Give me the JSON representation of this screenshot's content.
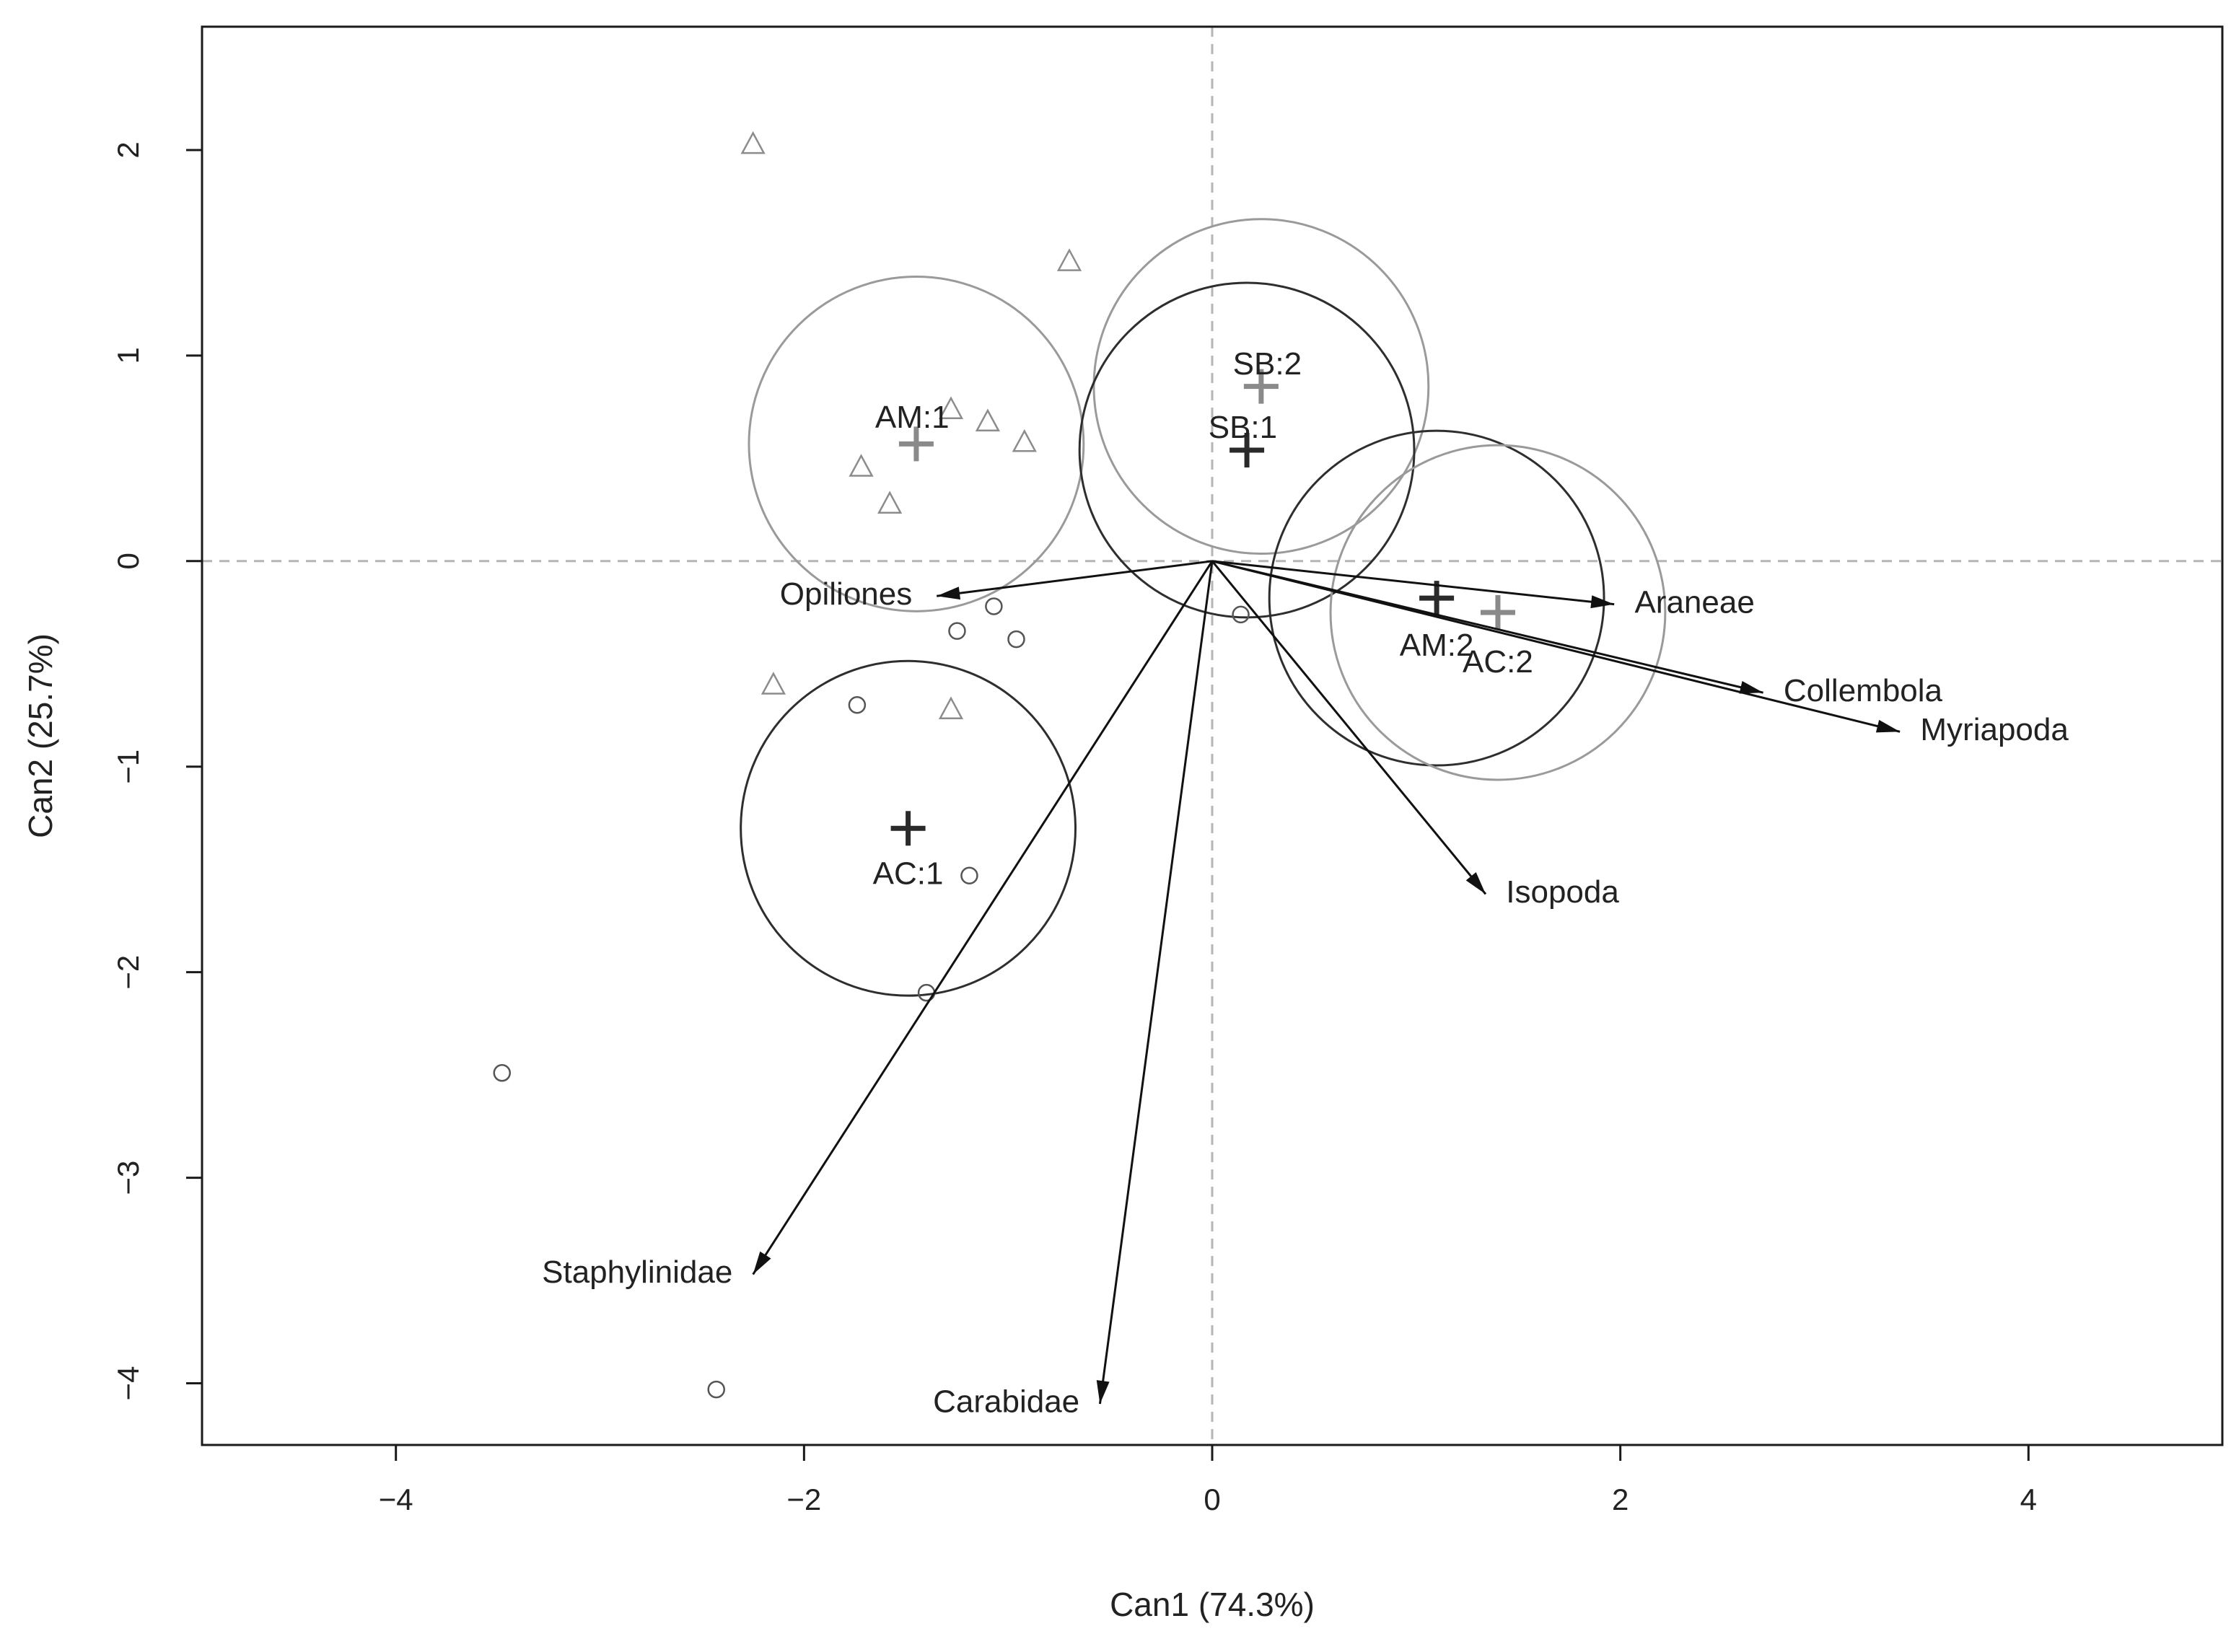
{
  "chart_data": {
    "type": "scatter",
    "title": "",
    "xlabel": "Can1 (74.3%)",
    "ylabel": "Can2 (25.7%)",
    "xlim": [
      -4.95,
      4.95
    ],
    "ylim": [
      -4.3,
      2.6
    ],
    "xticks": [
      -4,
      -2,
      0,
      2,
      4
    ],
    "yticks": [
      -4,
      -3,
      -2,
      -1,
      0,
      1,
      2
    ],
    "tick_labels": {
      "x": [
        "−4",
        "−2",
        "0",
        "2",
        "4"
      ],
      "y": [
        "−4",
        "−3",
        "−2",
        "−1",
        "0",
        "1",
        "2"
      ]
    },
    "reference_lines": {
      "x": 0,
      "y": 0
    },
    "points": {
      "triangles": [
        {
          "x": -2.25,
          "y": 2.03
        },
        {
          "x": -0.7,
          "y": 1.46
        },
        {
          "x": -1.28,
          "y": 0.74
        },
        {
          "x": -1.1,
          "y": 0.68
        },
        {
          "x": -0.92,
          "y": 0.58
        },
        {
          "x": -1.72,
          "y": 0.46
        },
        {
          "x": -1.58,
          "y": 0.28
        },
        {
          "x": -2.15,
          "y": -0.6
        },
        {
          "x": -1.28,
          "y": -0.72
        }
      ],
      "circles": [
        {
          "x": 0.14,
          "y": -0.26
        },
        {
          "x": -1.07,
          "y": -0.22
        },
        {
          "x": -1.25,
          "y": -0.34
        },
        {
          "x": -0.96,
          "y": -0.38
        },
        {
          "x": -1.74,
          "y": -0.7
        },
        {
          "x": -1.19,
          "y": -1.53
        },
        {
          "x": -1.4,
          "y": -2.1
        },
        {
          "x": -3.48,
          "y": -2.49
        },
        {
          "x": -2.43,
          "y": -4.03
        }
      ]
    },
    "centroids": [
      {
        "label": "AM:1",
        "x": -1.45,
        "y": 0.57,
        "r": 0.82,
        "tone": "gray",
        "label_dx": -0.02,
        "label_dy": 0.12
      },
      {
        "label": "SB:2",
        "x": 0.24,
        "y": 0.85,
        "r": 0.82,
        "tone": "gray",
        "label_dx": 0.03,
        "label_dy": 0.1
      },
      {
        "label": "SB:1",
        "x": 0.17,
        "y": 0.54,
        "r": 0.82,
        "tone": "dark",
        "label_dx": -0.02,
        "label_dy": 0.1
      },
      {
        "label": "AM:2",
        "x": 1.1,
        "y": -0.18,
        "r": 0.82,
        "tone": "dark",
        "label_dx": 0.0,
        "label_dy": -0.24
      },
      {
        "label": "AC:2",
        "x": 1.4,
        "y": -0.25,
        "r": 0.82,
        "tone": "gray",
        "label_dx": 0.0,
        "label_dy": -0.25
      },
      {
        "label": "AC:1",
        "x": -1.49,
        "y": -1.3,
        "r": 0.82,
        "tone": "dark",
        "label_dx": 0.0,
        "label_dy": -0.23
      }
    ],
    "vectors": [
      {
        "label": "Opiliones",
        "x": -1.35,
        "y": -0.17,
        "anchor": "end",
        "label_dx": -0.12,
        "label_dy": 0.0
      },
      {
        "label": "Araneae",
        "x": 1.97,
        "y": -0.21,
        "anchor": "start",
        "label_dx": 0.1,
        "label_dy": 0.0
      },
      {
        "label": "Collembola",
        "x": 2.7,
        "y": -0.64,
        "anchor": "start",
        "label_dx": 0.1,
        "label_dy": 0.0
      },
      {
        "label": "Myriapoda",
        "x": 3.37,
        "y": -0.83,
        "anchor": "start",
        "label_dx": 0.1,
        "label_dy": 0.0
      },
      {
        "label": "Isopoda",
        "x": 1.34,
        "y": -1.62,
        "anchor": "start",
        "label_dx": 0.1,
        "label_dy": 0.0
      },
      {
        "label": "Staphylinidae",
        "x": -2.25,
        "y": -3.47,
        "anchor": "end",
        "label_dx": -0.1,
        "label_dy": 0.0
      },
      {
        "label": "Carabidae",
        "x": -0.55,
        "y": -4.1,
        "anchor": "end",
        "label_dx": -0.1,
        "label_dy": 0.0
      }
    ]
  }
}
